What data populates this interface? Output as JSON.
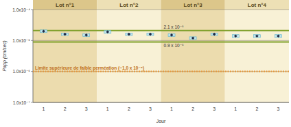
{
  "chart_data": {
    "type": "scatter",
    "y_label": "Papp (cm/sec)",
    "x_label": "Jour",
    "groups": [
      "Lot n°1",
      "Lot n°2",
      "Lot n°3",
      "Lot n°4"
    ],
    "categories": [
      "1",
      "2",
      "3",
      "1",
      "2",
      "3",
      "1",
      "2",
      "3",
      "1",
      "2",
      "3"
    ],
    "series": [
      {
        "color": "#1f2a44",
        "marker": "diamond",
        "values": [
          2e-05,
          1.6e-05,
          1.5e-05,
          1.9e-05,
          1.6e-05,
          1.6e-05,
          1.5e-05,
          1.2e-05,
          1.6e-05,
          1.4e-05,
          1.4e-05,
          1.4e-05
        ],
        "errors": [
          2e-06,
          1.5e-06,
          1.5e-06,
          2e-06,
          1.5e-06,
          1.5e-06,
          1.5e-06,
          1.2e-06,
          1.5e-06,
          1.5e-06,
          1.5e-06,
          1.5e-06
        ]
      }
    ],
    "reference_lines": [
      {
        "value": 2.1e-05,
        "label": "2.1 x 10⁻⁵",
        "color": "#7f9f2a",
        "line_style": "solid"
      },
      {
        "value": 9e-06,
        "label": "0.9 x 10⁻⁵",
        "color": "#7f9f2a",
        "line_style": "solid"
      },
      {
        "value": 1e-06,
        "label": "Limite supérieure de faible perméation (~1,0 x 10⁻⁶)",
        "color": "#e8983a",
        "line_style": "dashed"
      }
    ],
    "log": "y",
    "grid": true,
    "ylim": [
      1e-07,
      0.0001
    ],
    "yticks": [
      {
        "value": 1e-07,
        "label": "1.0x10⁻⁷"
      },
      {
        "value": 1e-06,
        "label": "1.0x10⁻⁶"
      },
      {
        "value": 1e-05,
        "label": "1.0x10⁻⁵"
      },
      {
        "value": 0.0001,
        "label": "1.0x10⁻⁴"
      }
    ]
  }
}
